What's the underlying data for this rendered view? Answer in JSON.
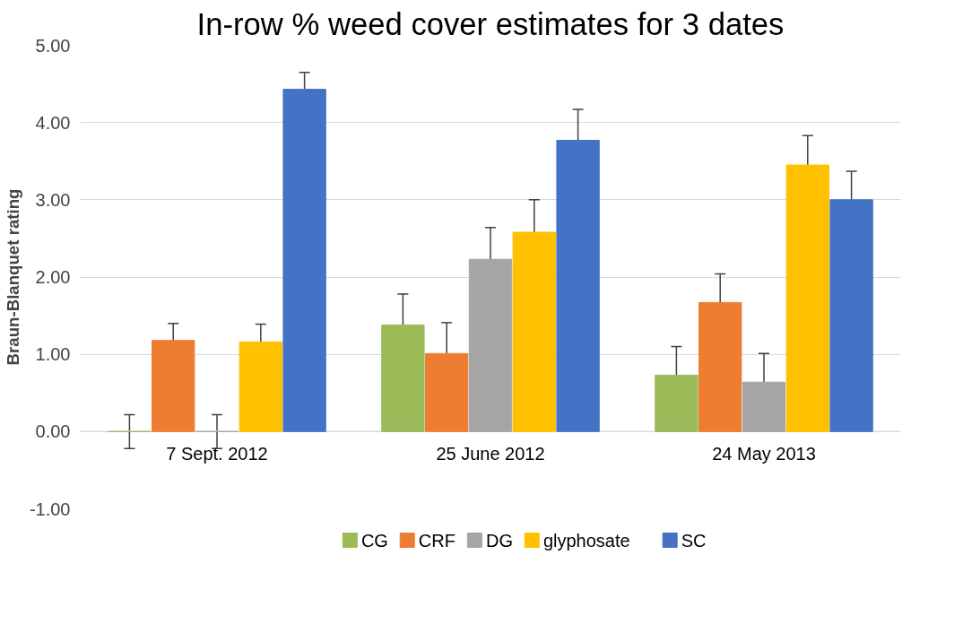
{
  "chart_data": {
    "type": "bar",
    "title": "In-row % weed cover estimates for 3 dates",
    "ylabel": "Braun-Blanquet rating",
    "categories": [
      "7 Sept. 2012",
      "25 June 2012",
      "24 May 2013"
    ],
    "series": [
      {
        "name": "CG",
        "color": "#9bbb59",
        "values": [
          0,
          1.38,
          0.73
        ],
        "errors": [
          0.22,
          0.4,
          0.37
        ]
      },
      {
        "name": "CRF",
        "color": "#ed7d31",
        "values": [
          1.18,
          1.01,
          1.67
        ],
        "errors": [
          0.22,
          0.4,
          0.37
        ]
      },
      {
        "name": "DG",
        "color": "#a5a5a5",
        "values": [
          0,
          2.23,
          0.64
        ],
        "errors": [
          0.22,
          0.41,
          0.37
        ]
      },
      {
        "name": "glyphosate",
        "color": "#ffc000",
        "values": [
          1.16,
          2.58,
          3.45
        ],
        "errors": [
          0.23,
          0.42,
          0.38
        ]
      },
      {
        "name": "SC",
        "color": "#4472c4",
        "values": [
          4.43,
          3.77,
          3.0
        ],
        "errors": [
          0.22,
          0.4,
          0.37
        ]
      }
    ],
    "ylim": [
      -1,
      5
    ],
    "yticks": [
      {
        "value": -1,
        "label": "-1.00"
      },
      {
        "value": 0,
        "label": "0.00"
      },
      {
        "value": 1,
        "label": "1.00"
      },
      {
        "value": 2,
        "label": "2.00"
      },
      {
        "value": 3,
        "label": "3.00"
      },
      {
        "value": 4,
        "label": "4.00"
      },
      {
        "value": 5,
        "label": "5.00"
      }
    ],
    "grid": "y",
    "legend": "bottom"
  }
}
